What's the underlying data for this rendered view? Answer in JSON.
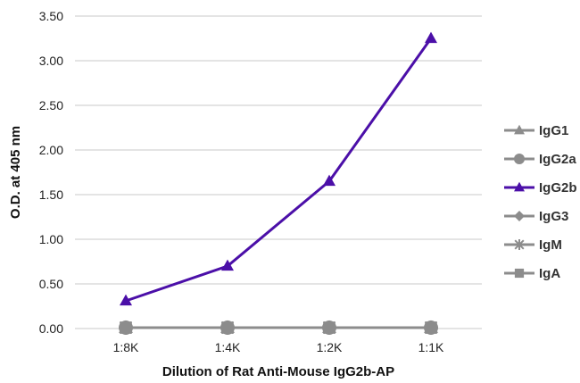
{
  "chart_data": {
    "type": "line",
    "categories": [
      "1:8K",
      "1:4K",
      "1:2K",
      "1:1K"
    ],
    "ylabel": "O.D. at 405 nm",
    "xlabel": "Dilution of Rat Anti-Mouse IgG2b-AP",
    "ylim": [
      0,
      3.5
    ],
    "yticks": [
      "0.00",
      "0.50",
      "1.00",
      "1.50",
      "2.00",
      "2.50",
      "3.00",
      "3.50"
    ],
    "grid": "horizontal",
    "legend_position": "right",
    "series": [
      {
        "name": "IgG1",
        "marker": "triangle",
        "color": "#8c8c8c",
        "values": [
          0.01,
          0.01,
          0.01,
          0.01
        ]
      },
      {
        "name": "IgG2a",
        "marker": "circle",
        "color": "#8c8c8c",
        "values": [
          0.01,
          0.01,
          0.01,
          0.01
        ]
      },
      {
        "name": "IgG2b",
        "marker": "triangle",
        "color": "#4b0fa8",
        "values": [
          0.31,
          0.7,
          1.65,
          3.25
        ]
      },
      {
        "name": "IgG3",
        "marker": "diamond",
        "color": "#8c8c8c",
        "values": [
          0.01,
          0.01,
          0.01,
          0.01
        ]
      },
      {
        "name": "IgM",
        "marker": "star",
        "color": "#8c8c8c",
        "values": [
          0.01,
          0.01,
          0.01,
          0.01
        ]
      },
      {
        "name": "IgA",
        "marker": "square",
        "color": "#8c8c8c",
        "values": [
          0.01,
          0.01,
          0.01,
          0.01
        ]
      }
    ]
  }
}
